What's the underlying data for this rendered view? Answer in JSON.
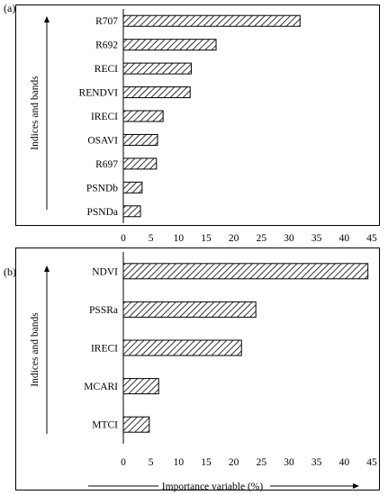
{
  "panels": [
    {
      "label": "(a)"
    },
    {
      "label": "(b)"
    }
  ],
  "chart_data": [
    {
      "type": "bar",
      "orientation": "horizontal",
      "panel": "(a)",
      "categories": [
        "R707",
        "R692",
        "RECI",
        "RENDVI",
        "IRECI",
        "OSAVI",
        "R697",
        "PSNDb",
        "PSNDa"
      ],
      "values": [
        32,
        16.8,
        12.3,
        12.1,
        7.2,
        6.2,
        6.0,
        3.4,
        3.1
      ],
      "xlabel": "",
      "ylabel": "Indices and bands",
      "xlim": [
        0,
        45
      ],
      "xticks": [
        0,
        5,
        10,
        15,
        20,
        25,
        30,
        35,
        40,
        45
      ],
      "bar_fill": "diagonal hatch",
      "grid": false
    },
    {
      "type": "bar",
      "orientation": "horizontal",
      "panel": "(b)",
      "categories": [
        "NDVI",
        "PSSRa",
        "IRECI",
        "MCARI",
        "MTCI"
      ],
      "values": [
        44.3,
        24,
        21.4,
        6.4,
        4.7
      ],
      "xlabel": "Importance variable  (%)",
      "ylabel": "Indices and bands",
      "xlim": [
        0,
        45
      ],
      "xticks": [
        0,
        5,
        10,
        15,
        20,
        25,
        30,
        35,
        40,
        45
      ],
      "bar_fill": "diagonal hatch",
      "grid": false
    }
  ]
}
